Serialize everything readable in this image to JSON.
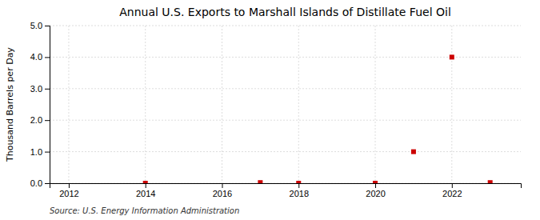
{
  "chart_data": {
    "type": "scatter",
    "title": "Annual U.S. Exports to Marshall Islands of Distillate Fuel Oil",
    "y_label": "Thousand Barrels per Day",
    "source": "Source: U.S. Energy Information Administration",
    "x": [
      2014,
      2017,
      2018,
      2020,
      2021,
      2022,
      2023
    ],
    "values": [
      0.0,
      0.02,
      0.0,
      0.0,
      1.0,
      4.0,
      0.02
    ],
    "color": "#cc0000",
    "marker": "square",
    "xlim": [
      2011.5,
      2023.8
    ],
    "ylim": [
      0,
      5.0
    ],
    "xticks": [
      2012,
      2014,
      2016,
      2018,
      2020,
      2022
    ],
    "yticks": [
      {
        "value": 0.0,
        "label": "0.0"
      },
      {
        "value": 1.0,
        "label": "1.0"
      },
      {
        "value": 2.0,
        "label": "2.0"
      },
      {
        "value": 3.0,
        "label": "3.0"
      },
      {
        "value": 4.0,
        "label": "4.0"
      },
      {
        "value": 5.0,
        "label": "5.0"
      }
    ],
    "grid": true
  }
}
